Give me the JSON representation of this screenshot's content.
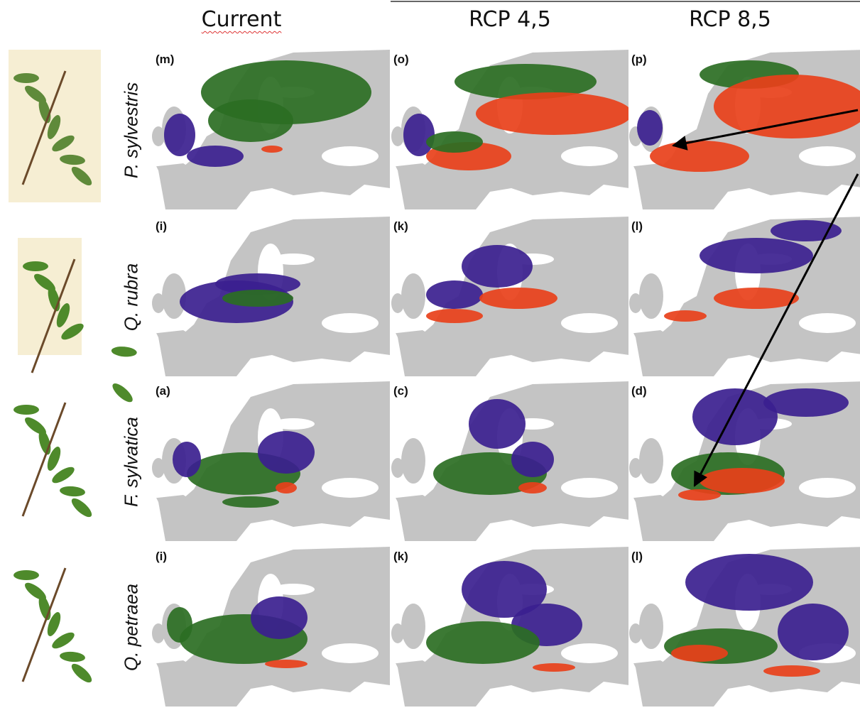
{
  "columns": [
    "Current",
    "RCP 4,5",
    "RCP 8,5"
  ],
  "rows": [
    {
      "species": "P. sylvestris",
      "panels": [
        "(m)",
        "(o)",
        "(p)"
      ]
    },
    {
      "species": "Q. rubra",
      "panels": [
        "(i)",
        "(k)",
        "(l)"
      ]
    },
    {
      "species": "F. sylvatica",
      "panels": [
        "(a)",
        "(c)",
        "(d)"
      ]
    },
    {
      "species": "Q. petraea",
      "panels": [
        "(i)",
        "(k)",
        "(l)"
      ]
    }
  ]
}
